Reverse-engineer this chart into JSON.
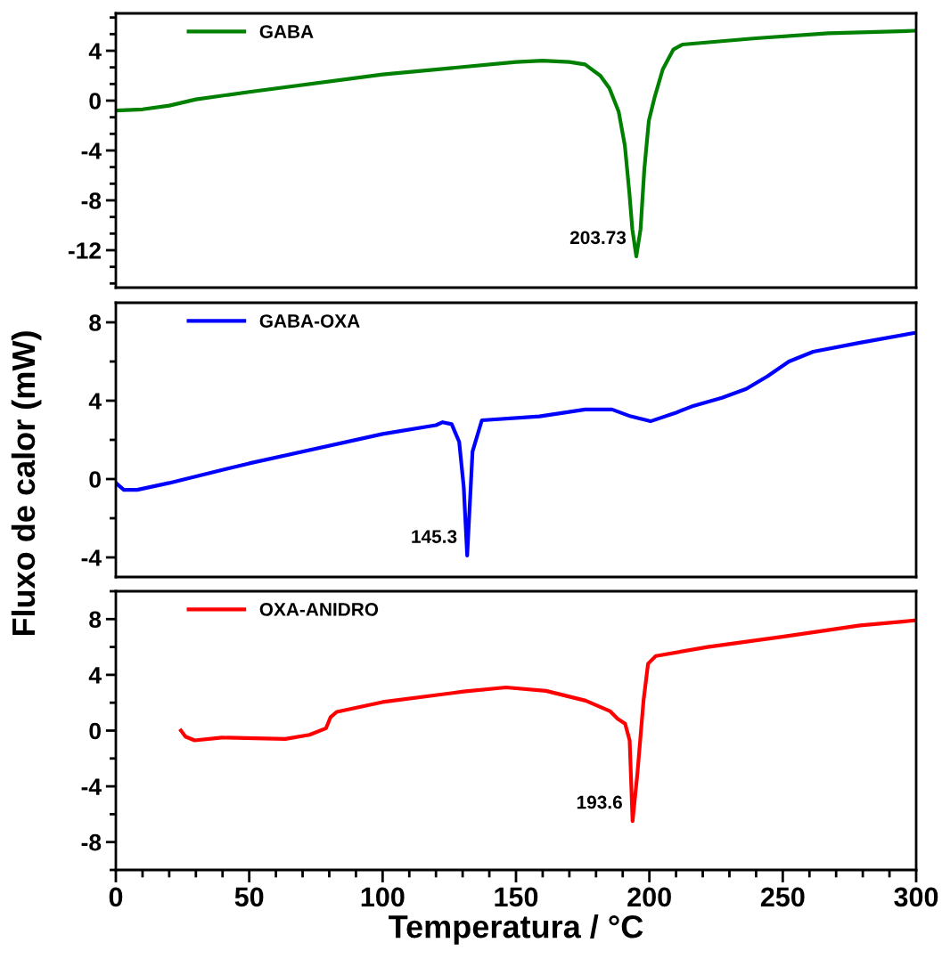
{
  "chart_data": [
    {
      "type": "line",
      "xlim": [
        0,
        300
      ],
      "xticks": [
        0,
        50,
        100,
        150,
        200,
        250,
        300
      ],
      "ylim": [
        -15,
        7
      ],
      "yticks": [
        -12,
        -8,
        -4,
        0,
        4
      ],
      "tick_labels": "y",
      "legend": "top left",
      "grid": false,
      "series": [
        {
          "name": "GABA",
          "color": "#008000",
          "x": [
            0,
            10,
            20,
            30,
            50,
            100,
            150,
            160,
            170,
            175.9,
            181.6,
            185,
            188.5,
            190.8,
            192.5,
            193.6,
            195.1,
            196.7,
            198.1,
            199.8,
            202,
            205,
            209,
            212.4,
            239.8,
            267,
            299
          ],
          "values": [
            -0.8,
            -0.7,
            -0.4,
            0.1,
            0.7,
            2.1,
            3.1,
            3.2,
            3.1,
            2.9,
            2.0,
            1.0,
            -0.9,
            -3.6,
            -7.4,
            -10.3,
            -12.5,
            -10.3,
            -5.5,
            -1.6,
            0.3,
            2.5,
            4.1,
            4.5,
            5.0,
            5.4,
            5.6
          ]
        }
      ],
      "annotations": [
        {
          "text": "203.73",
          "x": 195.1,
          "y": -12.5
        }
      ]
    },
    {
      "type": "line",
      "xlim": [
        0,
        300
      ],
      "xticks": [
        0,
        50,
        100,
        150,
        200,
        250,
        300
      ],
      "ylim": [
        -5,
        9
      ],
      "yticks": [
        -4,
        0,
        4,
        8
      ],
      "tick_labels": "y",
      "legend": "top left",
      "grid": false,
      "ylabel": "Fluxo de calor (mW)",
      "series": [
        {
          "name": "GABA-OXA",
          "color": "#0000ff",
          "x": [
            0,
            3,
            8,
            20,
            50,
            100,
            120,
            122.5,
            125.9,
            128.7,
            130.4,
            131.7,
            133.7,
            137.2,
            158.8,
            175.9,
            186,
            193,
            200.4,
            210.2,
            215.8,
            227.2,
            236.3,
            244.3,
            252.3,
            261.4,
            278.5,
            299
          ],
          "values": [
            -0.2,
            -0.55,
            -0.55,
            -0.2,
            0.8,
            2.3,
            2.75,
            2.9,
            2.8,
            1.9,
            -0.4,
            -3.9,
            1.4,
            3.0,
            3.2,
            3.55,
            3.55,
            3.2,
            2.95,
            3.4,
            3.7,
            4.15,
            4.6,
            5.25,
            6.0,
            6.5,
            6.95,
            7.45
          ]
        }
      ],
      "annotations": [
        {
          "text": "145.3",
          "x": 131.7,
          "y": -3.9
        }
      ]
    },
    {
      "type": "line",
      "xlim": [
        0,
        300
      ],
      "xticks": [
        0,
        50,
        100,
        150,
        200,
        250,
        300
      ],
      "ylim": [
        -10,
        10
      ],
      "yticks": [
        -8,
        -4,
        0,
        4,
        8
      ],
      "legend": "top left",
      "grid": false,
      "xlabel": "Temperatura / °C",
      "series": [
        {
          "name": "OXA-ANIDRO",
          "color": "#ff0000",
          "x": [
            24.4,
            26.1,
            29.5,
            39.7,
            52.2,
            63.5,
            72.6,
            78.8,
            80.5,
            82.8,
            100,
            130.3,
            146.3,
            161.2,
            176.1,
            185.2,
            188.1,
            190.9,
            192.6,
            193.7,
            195.5,
            197.8,
            199.5,
            202.4,
            221.8,
            250.4,
            279,
            299.4
          ],
          "values": [
            0,
            -0.43,
            -0.7,
            -0.5,
            -0.55,
            -0.6,
            -0.3,
            0.17,
            0.97,
            1.34,
            2.05,
            2.8,
            3.1,
            2.85,
            2.15,
            1.4,
            0.85,
            0.5,
            -0.7,
            -6.5,
            -3.1,
            2.15,
            4.8,
            5.35,
            6.0,
            6.75,
            7.55,
            7.9
          ]
        }
      ],
      "annotations": [
        {
          "text": "193.6",
          "x": 193.7,
          "y": -6.5
        }
      ]
    }
  ]
}
